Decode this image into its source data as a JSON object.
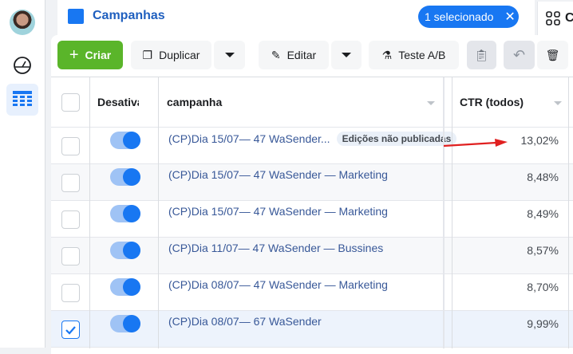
{
  "header": {
    "title": "Campanhas",
    "selection_label": "1 selecionado",
    "next_tab_label": "C"
  },
  "toolbar": {
    "create": "Criar",
    "duplicate": "Duplicar",
    "edit": "Editar",
    "ab_test": "Teste A/B"
  },
  "table": {
    "columns": [
      "Desativa",
      "campanha",
      "CTR (todos)"
    ],
    "rows": [
      {
        "name": "(CP)Dia 15/07— 47 WaSender...",
        "badge": "Edições não publicadas",
        "ctr": "13,02%",
        "checked": false,
        "on": true
      },
      {
        "name": "(CP)Dia 15/07— 47 WaSender — Marketing",
        "ctr": "8,48%",
        "checked": false,
        "on": true
      },
      {
        "name": "(CP)Dia 15/07— 47 WaSender — Marketing",
        "ctr": "8,49%",
        "checked": false,
        "on": true
      },
      {
        "name": "(CP)Dia 11/07— 47 WaSender — Bussines",
        "ctr": "8,57%",
        "checked": false,
        "on": true
      },
      {
        "name": "(CP)Dia 08/07— 47 WaSender — Marketing",
        "ctr": "8,70%",
        "checked": false,
        "on": true
      },
      {
        "name": "(CP)Dia 08/07— 67 WaSender",
        "ctr": "9,99%",
        "checked": true,
        "on": true
      }
    ]
  },
  "colors": {
    "accent": "#1877f2",
    "create": "#5ab52a",
    "annotation_arrow": "#e02020"
  }
}
